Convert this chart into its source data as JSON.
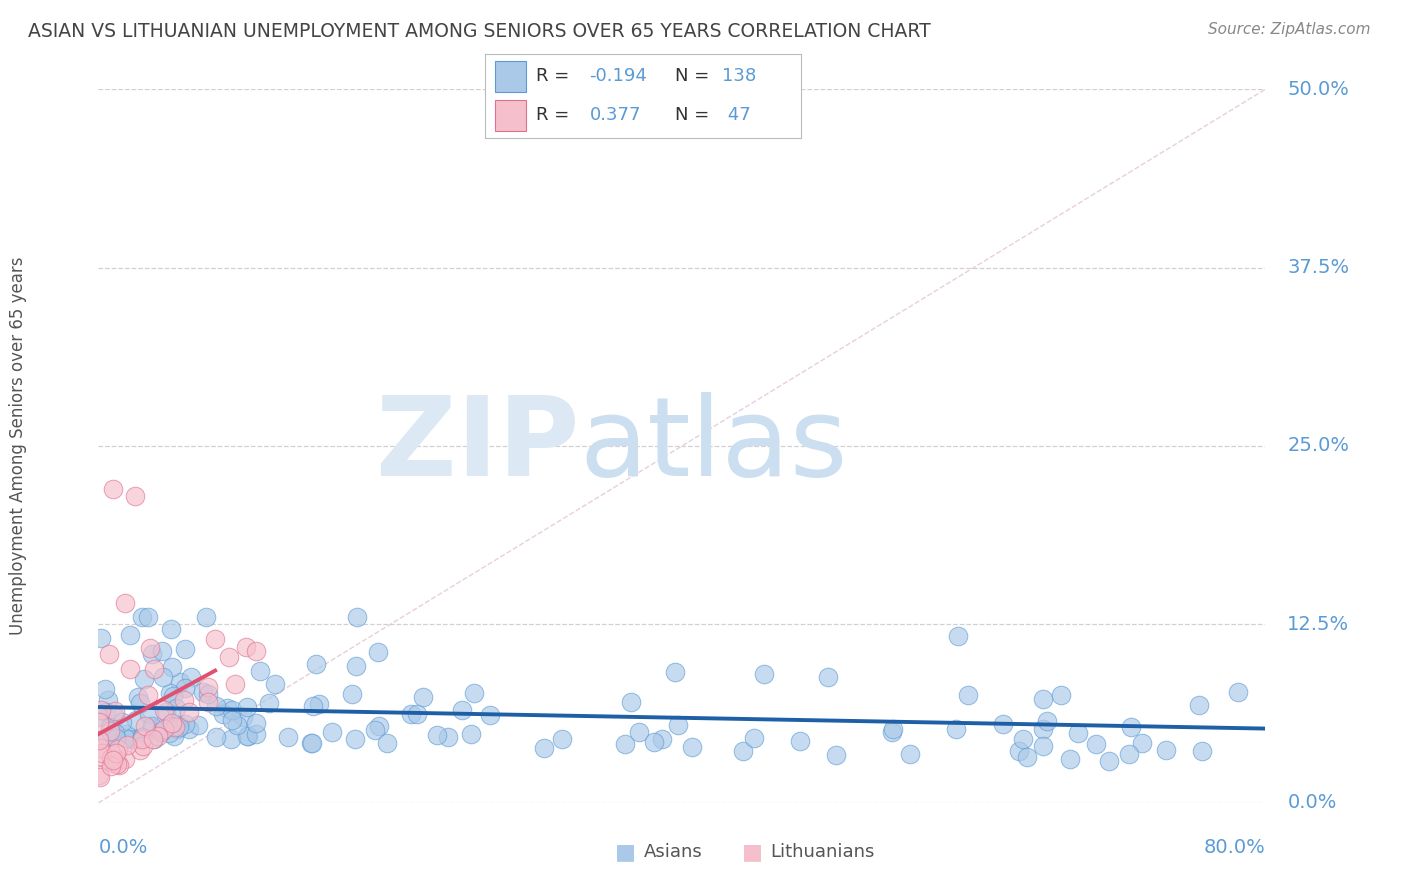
{
  "title": "ASIAN VS LITHUANIAN UNEMPLOYMENT AMONG SENIORS OVER 65 YEARS CORRELATION CHART",
  "source": "Source: ZipAtlas.com",
  "ylabel": "Unemployment Among Seniors over 65 years",
  "ytick_vals": [
    0.0,
    12.5,
    25.0,
    37.5,
    50.0
  ],
  "ytick_labels": [
    "0.0%",
    "12.5%",
    "25.0%",
    "37.5%",
    "50.0%"
  ],
  "xmin": 0.0,
  "xmax": 80.0,
  "ymin": 0.0,
  "ymax": 50.0,
  "asian_color": "#aac9e8",
  "asian_edge": "#5b9bd5",
  "asian_line_color": "#1f5fa6",
  "lithuanian_color": "#f5bfcc",
  "lithuanian_edge": "#e07090",
  "lithuanian_line_color": "#e05070",
  "legend_labels": [
    "Asians",
    "Lithuanians"
  ],
  "asian_R": -0.194,
  "asian_N": 138,
  "lithuanian_R": 0.377,
  "lithuanian_N": 47,
  "background_color": "#ffffff",
  "grid_color": "#cccccc",
  "title_color": "#444444",
  "axis_label_color": "#5b9bd5"
}
